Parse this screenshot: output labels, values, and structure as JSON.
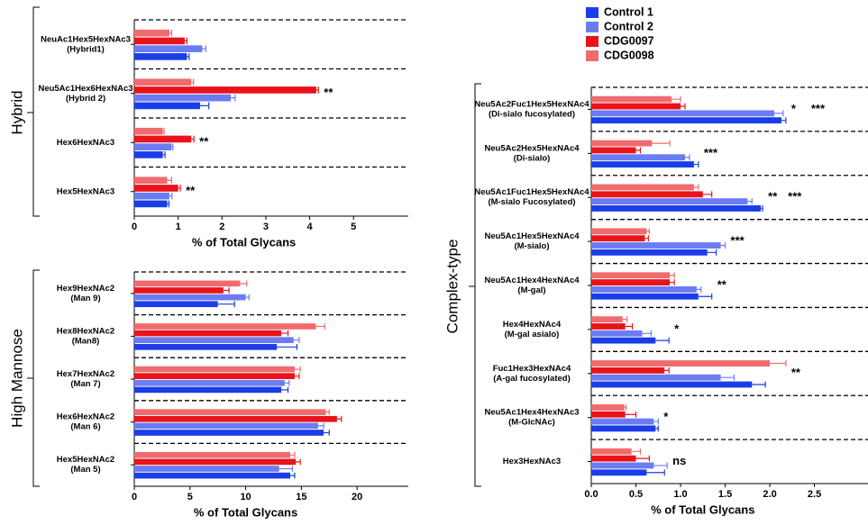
{
  "chart_data": [
    {
      "type": "hbar",
      "ylabel": "Hybrid",
      "xlabel": "% of Total Glycans",
      "categories": [
        [
          "NeuAc1Hex5HexNAc3",
          "(Hybrid1)"
        ],
        [
          "Neu5Ac1Hex6HexNAc3",
          "(Hybrid 2)"
        ],
        [
          "Hex6HexNAc3"
        ],
        [
          "Hex5HexNAc3"
        ]
      ],
      "series": [
        {
          "color": "#1a3de8",
          "values": [
            1.2,
            1.5,
            0.65,
            0.75
          ],
          "errors": [
            0.05,
            0.2,
            0.05,
            0.04
          ]
        },
        {
          "color": "#6b7cf2",
          "values": [
            1.55,
            2.2,
            0.85,
            0.8
          ],
          "errors": [
            0.08,
            0.1,
            0.03,
            0.06
          ]
        },
        {
          "color": "#e8141a",
          "values": [
            1.15,
            4.15,
            1.3,
            1.0
          ],
          "errors": [
            0.05,
            0.05,
            0.06,
            0.05
          ]
        },
        {
          "color": "#f06b6e",
          "values": [
            0.8,
            1.3,
            0.65,
            0.75
          ],
          "errors": [
            0.05,
            0.05,
            0.03,
            0.1
          ]
        }
      ],
      "annotations": [
        null,
        [
          "**"
        ],
        [
          "**"
        ],
        [
          "**"
        ]
      ],
      "xlim": [
        0,
        6.25
      ],
      "xticks": [
        0,
        1,
        2,
        3,
        4,
        5
      ]
    },
    {
      "type": "hbar",
      "ylabel": "High Mannose",
      "xlabel": "% of Total Glycans",
      "categories": [
        [
          "Hex9HexNAc2",
          "(Man 9)"
        ],
        [
          "Hex8HexNAc2",
          "(Man8)"
        ],
        [
          "Hex7HexNAc2",
          "(Man 7)"
        ],
        [
          "Hex6HexNAc2",
          "(Man 6)"
        ],
        [
          "Hex5HexNAc2",
          "(Man 5)"
        ]
      ],
      "series": [
        {
          "color": "#1a3de8",
          "values": [
            7.5,
            12.8,
            13.2,
            17,
            14
          ],
          "errors": [
            1.5,
            1.8,
            0.6,
            0.5,
            0.4
          ]
        },
        {
          "color": "#6b7cf2",
          "values": [
            10,
            14.3,
            13.5,
            16.5,
            13
          ],
          "errors": [
            0.3,
            0.5,
            0.4,
            0.5,
            1.2
          ]
        },
        {
          "color": "#e8141a",
          "values": [
            8,
            13.2,
            14.4,
            18.2,
            14.5
          ],
          "errors": [
            0.5,
            0.6,
            0.4,
            0.4,
            0.4
          ]
        },
        {
          "color": "#f06b6e",
          "values": [
            9.5,
            16.3,
            14.4,
            17.2,
            14
          ],
          "errors": [
            0.6,
            0.8,
            0.5,
            0.3,
            0.4
          ]
        }
      ],
      "xlim": [
        0,
        24.6
      ],
      "xticks": [
        0,
        5,
        10,
        15,
        20
      ]
    },
    {
      "type": "hbar",
      "ylabel": "Complex-type",
      "xlabel": "% of Total Glycans",
      "categories": [
        [
          "Neu5Ac2Fuc1Hex5HexNAc4",
          "(Di-sialo fucosylated)"
        ],
        [
          "Neu5Ac2Hex5HexNAc4",
          "(Di-sialo)"
        ],
        [
          "Neu5Ac1Fuc1Hex5HexNAc4",
          "(M-sialo Fucosylated)"
        ],
        [
          "Neu5Ac1Hex5HexNAc4",
          "(M-sialo)"
        ],
        [
          "Neu5Ac1Hex4HexNAc4",
          "(M-gal)"
        ],
        [
          "Hex4HexNAc4",
          "(M-gal asialo)"
        ],
        [
          "Fuc1Hex3HexNAc4",
          "(A-gal fucosylated)"
        ],
        [
          "Neu5Ac1Hex4HexNAc3",
          "(M-GlcNAc)"
        ],
        [
          "Hex3HexNAc3"
        ]
      ],
      "series": [
        {
          "name": "Control 1",
          "color": "#1a3de8",
          "values": [
            2.13,
            1.15,
            1.9,
            1.3,
            1.2,
            0.72,
            1.8,
            0.72,
            0.62
          ],
          "errors": [
            0.05,
            0.05,
            0.02,
            0.1,
            0.15,
            0.15,
            0.15,
            0.03,
            0.2
          ]
        },
        {
          "name": "Control 2",
          "color": "#6b7cf2",
          "values": [
            2.05,
            1.05,
            1.75,
            1.45,
            1.18,
            0.57,
            1.45,
            0.7,
            0.7
          ],
          "errors": [
            0.1,
            0.05,
            0.05,
            0.05,
            0.05,
            0.1,
            0.15,
            0.05,
            0.15
          ]
        },
        {
          "name": "CDG0097",
          "color": "#e8141a",
          "values": [
            1.0,
            0.5,
            1.25,
            0.6,
            0.88,
            0.38,
            0.82,
            0.38,
            0.5
          ],
          "errors": [
            0.05,
            0.05,
            0.1,
            0.04,
            0.05,
            0.08,
            0.05,
            0.12,
            0.15
          ]
        },
        {
          "name": "CDG0098",
          "color": "#f06b6e",
          "values": [
            0.9,
            0.68,
            1.15,
            0.62,
            0.88,
            0.35,
            2.0,
            0.37,
            0.45
          ],
          "errors": [
            0.1,
            0.2,
            0.05,
            0.03,
            0.05,
            0.05,
            0.18,
            0.02,
            0.1
          ]
        }
      ],
      "annotations": [
        [
          "*",
          "***"
        ],
        [
          "***"
        ],
        [
          "**",
          "***"
        ],
        [
          "***"
        ],
        [
          "**"
        ],
        [
          "*"
        ],
        [
          "**"
        ],
        [
          "*"
        ],
        [
          "ns"
        ]
      ],
      "xlim": [
        0,
        3.1
      ],
      "xticks": [
        {
          "value": 0,
          "label": "0.0"
        },
        0.5,
        {
          "value": 1,
          "label": "1.0"
        },
        1.5,
        {
          "value": 2,
          "label": "2.0"
        },
        2.5
      ]
    }
  ]
}
